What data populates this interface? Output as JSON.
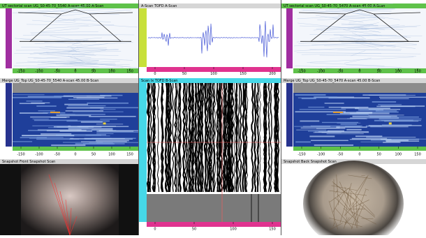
{
  "left_top": {
    "title": "UT sectorial scan UG_S0-45-70_5540 A-scan 45.00 A-Scan"
  },
  "middle_top": {
    "title": "A-Scan TOFD A-Scan"
  },
  "right_top": {
    "title": "UT sectorial scan UG_S0-45-70_5470 A-scan 45.00 A-Scan"
  },
  "left_middle": {
    "title": "Merge UG_Top UG_S0-45-70_5540 A-scan 45.00 B-Scan"
  },
  "middle_main": {
    "title": "Scan Ix TOFD B-Scan"
  },
  "right_middle": {
    "title": "Merge UG_Top UG_S0-45-70_5470 A-scan 45.00 B-Scan"
  },
  "left_bottom": {
    "title": "Snapshot Front Snapshot Scan"
  },
  "right_bottom": {
    "title": "Snapshot Back Snapshot Scan"
  },
  "side_ruler_labels": [
    "-150",
    "-100",
    "-50",
    "0",
    "50",
    "100",
    "150"
  ],
  "ascan_ruler_labels": [
    "0",
    "50",
    "100",
    "150",
    "200"
  ],
  "tofd_ruler_labels": [
    "0",
    "50",
    "100",
    "150"
  ]
}
